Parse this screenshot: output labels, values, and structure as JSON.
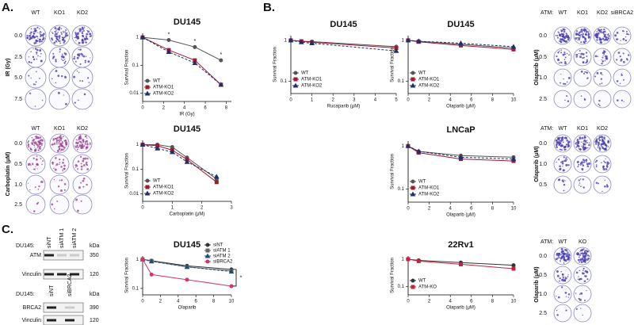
{
  "panel_labels": [
    "A.",
    "B.",
    "C."
  ],
  "chart_data": [
    {
      "type": "line",
      "title": "DU145",
      "x_label": "IR (Gy)",
      "y_label": "Survival Fraction",
      "log_y": true,
      "legend": "bottom-left",
      "x": [
        0,
        2.5,
        5,
        7.5
      ],
      "xlim": [
        0,
        8.5
      ],
      "xticks": [
        0,
        2,
        4,
        6,
        8
      ],
      "ylim": [
        0.005,
        1.4
      ],
      "yticks": [
        0.01,
        0.1,
        1
      ],
      "series": [
        {
          "name": "WT",
          "color": "#555555",
          "values": [
            1,
            0.8,
            0.45,
            0.15
          ]
        },
        {
          "name": "ATM-KO1",
          "color": "#9e1b32",
          "values": [
            1,
            0.35,
            0.15,
            0.02
          ]
        },
        {
          "name": "ATM-KO2",
          "color": "#1f2f6b",
          "values": [
            1,
            0.3,
            0.12,
            0.02
          ]
        }
      ],
      "annotations": [
        "*",
        "*",
        "*"
      ]
    },
    {
      "type": "line",
      "title": "DU145",
      "x_label": "Carboplatin (μM)",
      "y_label": "Survival Fraction",
      "log_y": true,
      "legend": "bottom-left",
      "x": [
        0,
        0.5,
        1,
        1.5,
        2.5
      ],
      "xlim": [
        0,
        3
      ],
      "xticks": [
        0,
        1,
        2,
        3
      ],
      "ylim": [
        0.005,
        1.5
      ],
      "yticks": [
        0.01,
        0.1,
        1
      ],
      "series": [
        {
          "name": "WT",
          "color": "#555555",
          "values": [
            1,
            1,
            0.8,
            0.3,
            0.04
          ]
        },
        {
          "name": "ATM-KO1",
          "color": "#9e1b32",
          "values": [
            1,
            0.9,
            0.6,
            0.25,
            0.03
          ]
        },
        {
          "name": "ATM-KO2",
          "color": "#1f2f6b",
          "values": [
            1,
            0.7,
            0.5,
            0.2,
            0.05
          ]
        }
      ]
    },
    {
      "type": "line",
      "title": "DU145",
      "x_label": "Rucaparib (μM)",
      "y_label": "Survival Fraction",
      "log_y": true,
      "legend": "bottom-left",
      "x": [
        0,
        0.5,
        1,
        5
      ],
      "xlim": [
        0,
        5
      ],
      "xticks": [
        0,
        1,
        2,
        3,
        4,
        5
      ],
      "ylim": [
        0.05,
        1.3
      ],
      "yticks": [
        0.1,
        1
      ],
      "series": [
        {
          "name": "WT",
          "color": "#555555",
          "values": [
            1,
            0.95,
            0.93,
            0.7
          ]
        },
        {
          "name": "ATM-KO1",
          "color": "#9e1b32",
          "values": [
            1,
            0.95,
            0.9,
            0.65
          ]
        },
        {
          "name": "ATM-KO2",
          "color": "#1f2f6b",
          "values": [
            1,
            0.9,
            0.85,
            0.55
          ]
        }
      ]
    },
    {
      "type": "line",
      "title": "DU145",
      "x_label": "Olaparib (μM)",
      "y_label": "Survival Fraction",
      "log_y": true,
      "legend": "bottom-left",
      "x": [
        0,
        1,
        5,
        10
      ],
      "xlim": [
        0,
        10
      ],
      "xticks": [
        0,
        2,
        4,
        6,
        8,
        10
      ],
      "ylim": [
        0.05,
        1.3
      ],
      "yticks": [
        0.1,
        1
      ],
      "series": [
        {
          "name": "WT",
          "color": "#555555",
          "values": [
            1,
            0.95,
            0.8,
            0.65
          ]
        },
        {
          "name": "ATM-KO1",
          "color": "#9e1b32",
          "values": [
            1,
            0.92,
            0.75,
            0.6
          ]
        },
        {
          "name": "ATM-KO2",
          "color": "#1f2f6b",
          "values": [
            1,
            0.95,
            0.85,
            0.7
          ]
        }
      ]
    },
    {
      "type": "line",
      "title": "LNCaP",
      "x_label": "Olaparib (μM)",
      "y_label": "Survival Fraction",
      "log_y": true,
      "legend": "bottom-left",
      "x": [
        0,
        1,
        5,
        10
      ],
      "xlim": [
        0,
        10
      ],
      "xticks": [
        0,
        2,
        4,
        6,
        8,
        10
      ],
      "ylim": [
        0.05,
        1.3
      ],
      "yticks": [
        0.1,
        1
      ],
      "series": [
        {
          "name": "WT",
          "color": "#555555",
          "values": [
            1,
            0.75,
            0.6,
            0.55
          ]
        },
        {
          "name": "ATM-KO1",
          "color": "#9e1b32",
          "values": [
            1,
            0.7,
            0.5,
            0.45
          ]
        },
        {
          "name": "ATM-KO2",
          "color": "#1f2f6b",
          "values": [
            1,
            0.75,
            0.55,
            0.5
          ]
        }
      ]
    },
    {
      "type": "line",
      "title": "DU145",
      "x_label": "Olaparib",
      "y_label": "Survival Fraction",
      "log_y": true,
      "legend": "top-right",
      "x": [
        0,
        1,
        5,
        10
      ],
      "xlim": [
        0,
        10
      ],
      "xticks": [
        0,
        2,
        4,
        6,
        8,
        10
      ],
      "ylim": [
        0.06,
        1.3
      ],
      "yticks": [
        0.1,
        1
      ],
      "series": [
        {
          "name": "siNT",
          "color": "#333333",
          "values": [
            1,
            0.9,
            0.6,
            0.45
          ]
        },
        {
          "name": "siATM 1",
          "color": "#666666",
          "values": [
            1,
            0.88,
            0.55,
            0.4
          ]
        },
        {
          "name": "siATM 2",
          "color": "#1f4e79",
          "values": [
            1,
            0.85,
            0.55,
            0.38
          ]
        },
        {
          "name": "siBRCA2",
          "color": "#d6336c",
          "values": [
            1,
            0.3,
            0.2,
            0.12
          ]
        }
      ],
      "annotations": [
        "*"
      ]
    },
    {
      "type": "line",
      "title": "22Rv1",
      "x_label": "Olaparib (μM)",
      "y_label": "Survival Fraction",
      "log_y": true,
      "legend": "bottom-left",
      "x": [
        0,
        1,
        5,
        10
      ],
      "xlim": [
        0,
        10
      ],
      "xticks": [
        0,
        2,
        4,
        6,
        8,
        10
      ],
      "ylim": [
        0.05,
        1.3
      ],
      "yticks": [
        0.1,
        1
      ],
      "series": [
        {
          "name": "WT",
          "color": "#333333",
          "values": [
            1,
            0.9,
            0.75,
            0.6
          ]
        },
        {
          "name": "ATM-KO",
          "color": "#c0243c",
          "values": [
            1,
            0.85,
            0.65,
            0.45
          ]
        }
      ]
    }
  ],
  "plates": [
    {
      "columns": [
        "WT",
        "KO1",
        "KO2"
      ],
      "rows": [
        "0.0",
        "2.5",
        "5.0",
        "7.5"
      ],
      "row_label": "IR (Gy)"
    },
    {
      "columns": [
        "WT",
        "KO1",
        "KO2"
      ],
      "rows": [
        "0.0",
        "0.5",
        "1.0",
        "2.5"
      ],
      "row_label": "Carboplatin (μM)"
    },
    {
      "prefix": "ATM:",
      "columns": [
        "WT",
        "KO1",
        "KO2",
        "siBRCA2"
      ],
      "rows": [
        "0.0",
        "0.5",
        "1.0",
        "2.5"
      ],
      "row_label": "Olaparib (μM)"
    },
    {
      "prefix": "ATM:",
      "columns": [
        "WT",
        "KO1",
        "KO2"
      ],
      "rows": [
        "0.0",
        "1.0",
        "0.5"
      ],
      "row_label": "Olaparib (μM)"
    },
    {
      "prefix": "ATM:",
      "columns": [
        "WT",
        "KO"
      ],
      "rows": [
        "0.0",
        "0.5",
        "1.0",
        "2.5"
      ],
      "row_label": "Olaparib (μM)"
    }
  ],
  "blots": [
    {
      "cell_line": "DU145:",
      "lanes": [
        "siNT",
        "siATM 1",
        "siATM 2"
      ],
      "unit": "kDa",
      "rows": [
        {
          "protein": "ATM",
          "kda": "350"
        },
        {
          "protein": "Vinculin",
          "kda": "120"
        }
      ]
    },
    {
      "cell_line": "DU145:",
      "lanes": [
        "siNT",
        "siBRCA2"
      ],
      "unit": "kDa",
      "rows": [
        {
          "protein": "BRCA2",
          "kda": "390"
        },
        {
          "protein": "Vinculin",
          "kda": "120"
        }
      ]
    }
  ]
}
